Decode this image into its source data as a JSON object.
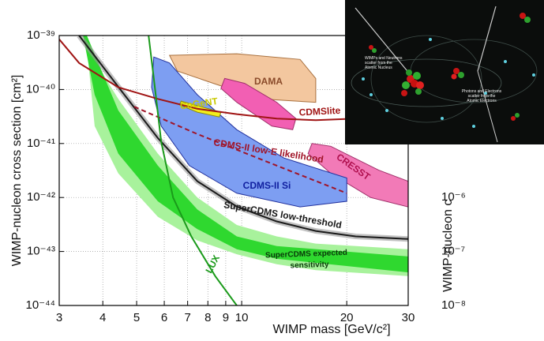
{
  "chart_data": {
    "type": "line",
    "xlabel": "WIMP mass [GeV/c²]",
    "ylabel": "WIMP-nucleon cross section [cm²]",
    "y2label": "WIMP-nucleon c",
    "xscale": "log",
    "yscale": "log",
    "grid": true,
    "xlim": [
      3,
      30
    ],
    "xticks": [
      3,
      4,
      5,
      6,
      7,
      8,
      9,
      10,
      20,
      30
    ],
    "ylim": [
      1e-44,
      1e-39
    ],
    "yticks": [
      {
        "value": 1e-44,
        "label": "10⁻⁴⁴"
      },
      {
        "value": 1e-43,
        "label": "10⁻⁴³"
      },
      {
        "value": 1e-42,
        "label": "10⁻⁴²"
      },
      {
        "value": 1e-41,
        "label": "10⁻⁴¹"
      },
      {
        "value": 1e-40,
        "label": "10⁻⁴⁰"
      },
      {
        "value": 1e-39,
        "label": "10⁻³⁹"
      }
    ],
    "y2lim": [
      1e-08,
      0.001
    ],
    "y2ticks": [
      {
        "value": 1e-08,
        "label": "10⁻⁸"
      },
      {
        "value": 1e-07,
        "label": "10⁻⁷"
      },
      {
        "value": 1e-06,
        "label": "10⁻⁶"
      }
    ],
    "regions": [
      {
        "color": "#a8f29c",
        "x": [
          3.42,
          4.43,
          5.75,
          7.46,
          9.68,
          12.6,
          16.3,
          30,
          30,
          16.3,
          12.6,
          9.68,
          7.46,
          5.75,
          4.43,
          3.79,
          3.6
        ],
        "y": [
          1e-39,
          6.7e-41,
          6.5e-42,
          1e-42,
          3.1e-43,
          1.9e-43,
          1.4e-43,
          1.1e-43,
          3.5e-44,
          4.5e-44,
          5.8e-44,
          8.9e-44,
          1.6e-43,
          4.4e-43,
          2.8e-42,
          2.1e-41,
          6e-40
        ]
      },
      {
        "color": "#2fd82f",
        "label_lines": [
          "SuperCDMS expected",
          "sensitivity"
        ],
        "x": [
          3.6,
          4.43,
          5.75,
          7.46,
          9.68,
          12.6,
          30,
          30,
          12.6,
          9.68,
          7.46,
          5.75,
          4.43,
          3.79,
          3.51
        ],
        "y": [
          1e-39,
          4.1e-41,
          3.9e-42,
          6e-43,
          1.9e-43,
          1.26e-43,
          8.1e-44,
          4.1e-44,
          7.3e-44,
          1.1e-43,
          2.6e-43,
          8.5e-43,
          6.5e-42,
          8e-41,
          1e-39
        ]
      },
      {
        "color": "#f3c79f",
        "stroke": "#a8703e",
        "label": "DAMA",
        "x": [
          6.21,
          9.68,
          14.7,
          16.3,
          16.3,
          11.3,
          8.3,
          6.54
        ],
        "y": [
          4.3e-40,
          4.6e-40,
          3.6e-40,
          1.6e-40,
          5.8e-41,
          6.7e-41,
          1.3e-40,
          2.2e-40
        ]
      },
      {
        "color": "#f25fb3",
        "stroke": "#a0306a",
        "x": [
          8.94,
          10.2,
          12.6,
          14.3,
          14.0,
          12.2,
          9.68,
          8.72
        ],
        "y": [
          1.6e-40,
          1.3e-40,
          5.8e-41,
          2.9e-41,
          1.8e-41,
          2.1e-41,
          5.8e-41,
          1.05e-40
        ]
      },
      {
        "color": "#f27ab7",
        "stroke": "#a0306a",
        "label": "CRESST",
        "x": [
          15.9,
          18.0,
          24.7,
          30,
          30,
          23.4,
          18.0,
          15.5
        ],
        "y": [
          1e-41,
          8.9e-42,
          3.2e-42,
          2e-42,
          6.7e-43,
          1e-42,
          2.8e-42,
          6.5e-42
        ]
      },
      {
        "color": "#7d9ef2",
        "stroke": "#22329e",
        "label": "CDMS-II Si",
        "x": [
          5.6,
          6.21,
          7.46,
          9.68,
          13.2,
          20.0,
          20.0,
          14.7,
          9.68,
          7.08,
          5.88,
          5.52
        ],
        "y": [
          4e-40,
          3.1e-40,
          8e-41,
          1.8e-41,
          5.4e-42,
          2.3e-42,
          8.5e-43,
          6.7e-43,
          1.2e-42,
          3.9e-42,
          2.1e-41,
          1.1e-40
        ]
      },
      {
        "color": "#f3ee1a",
        "stroke": "#8a8a10",
        "label": "CoGeNT",
        "x": [
          6.71,
          7.66,
          8.72,
          8.63,
          7.46,
          6.63
        ],
        "y": [
          6.1e-41,
          4.8e-41,
          3.8e-41,
          3.1e-41,
          3.8e-41,
          5.2e-41
        ]
      }
    ],
    "series": [
      {
        "label": "SuperCDMS low-threshold",
        "color": "#1a1a1a",
        "x": [
          3.42,
          4.43,
          5.75,
          7.46,
          9.68,
          12.6,
          16.3,
          21.2,
          30
        ],
        "values": [
          1e-39,
          1.12e-40,
          1.26e-41,
          2e-42,
          6.8e-43,
          3.6e-43,
          2.4e-43,
          1.9e-43,
          1.7e-43
        ]
      },
      {
        "label": "CDMSlite",
        "color": "#a01414",
        "x": [
          3,
          3.42,
          4.43,
          5.75,
          7.46,
          9.68,
          12.6,
          16.3,
          21.2,
          30
        ],
        "values": [
          8.5e-40,
          3.1e-40,
          1.1e-40,
          6.7e-41,
          4.4e-41,
          3.5e-41,
          2.9e-41,
          2.7e-41,
          2.9e-41,
          3.5e-41
        ]
      },
      {
        "label": "CDMS-II low-E likelihood",
        "color": "#a01428",
        "dash": true,
        "x": [
          4.92,
          7.46,
          12.6,
          20.0
        ],
        "values": [
          4.8e-41,
          1.5e-41,
          3.9e-42,
          1.2e-42
        ]
      },
      {
        "label": "LUX",
        "color": "#1a9a1a",
        "x": [
          5.41,
          5.6,
          5.88,
          6.36,
          7.17,
          8.4,
          9.68
        ],
        "values": [
          1e-39,
          1.6e-40,
          1.07e-41,
          1e-42,
          1.9e-43,
          3.5e-44,
          1e-44
        ]
      }
    ]
  },
  "inset": {
    "left_text": [
      "WIMPs and Neutrons",
      "scatter from the",
      "Atomic Nucleus"
    ],
    "right_text": [
      "Photons and Electrons",
      "scatter from the",
      "Atomic Electrons"
    ]
  }
}
